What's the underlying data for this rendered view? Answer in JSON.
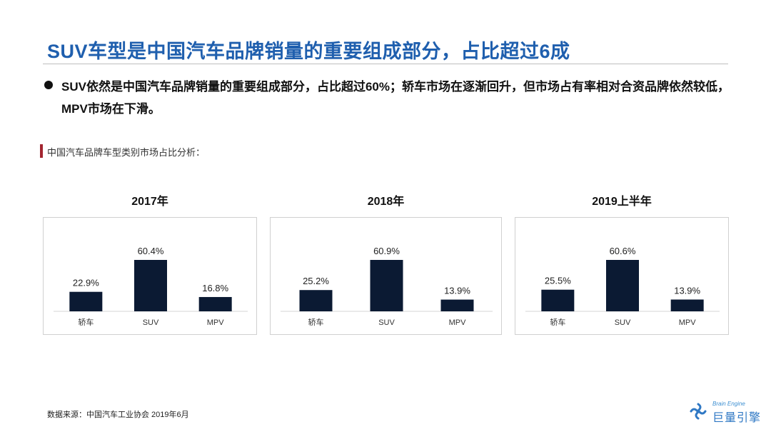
{
  "header": {
    "title": "SUV车型是中国汽车品牌销量的重要组成部分，占比超过6成"
  },
  "bullet": {
    "text": "SUV依然是中国汽车品牌销量的重要组成部分，占比超过60%；轿车市场在逐渐回升，但市场占有率相对合资品牌依然较低，MPV市场在下滑。"
  },
  "section": {
    "label": "中国汽车品牌车型类别市场占比分析："
  },
  "chart_data": [
    {
      "type": "bar",
      "title": "2017年",
      "categories": [
        "轿车",
        "SUV",
        "MPV"
      ],
      "values": [
        22.9,
        60.4,
        16.8
      ],
      "data_labels": [
        "22.9%",
        "60.4%",
        "16.8%"
      ],
      "ylim": [
        0,
        60.4
      ],
      "color": "#0b1a33",
      "grid": false
    },
    {
      "type": "bar",
      "title": "2018年",
      "categories": [
        "轿车",
        "SUV",
        "MPV"
      ],
      "values": [
        25.2,
        60.9,
        13.9
      ],
      "data_labels": [
        "25.2%",
        "60.9%",
        "13.9%"
      ],
      "ylim": [
        0,
        60.9
      ],
      "color": "#0b1a33",
      "grid": false
    },
    {
      "type": "bar",
      "title": "2019上半年",
      "categories": [
        "轿车",
        "SUV",
        "MPV"
      ],
      "values": [
        25.5,
        60.6,
        13.9
      ],
      "data_labels": [
        "25.5%",
        "60.6%",
        "13.9%"
      ],
      "ylim": [
        0,
        60.6
      ],
      "color": "#0b1a33",
      "grid": false
    }
  ],
  "footer": {
    "source": "数据来源：中国汽车工业协会 2019年6月"
  },
  "logo": {
    "icon": "brain-engine-logo-icon",
    "en": "Brain Engine",
    "cn": "巨量引擎"
  },
  "colors": {
    "title": "#1f5fae",
    "bar": "#0b1a33",
    "accent": "#a32530"
  }
}
